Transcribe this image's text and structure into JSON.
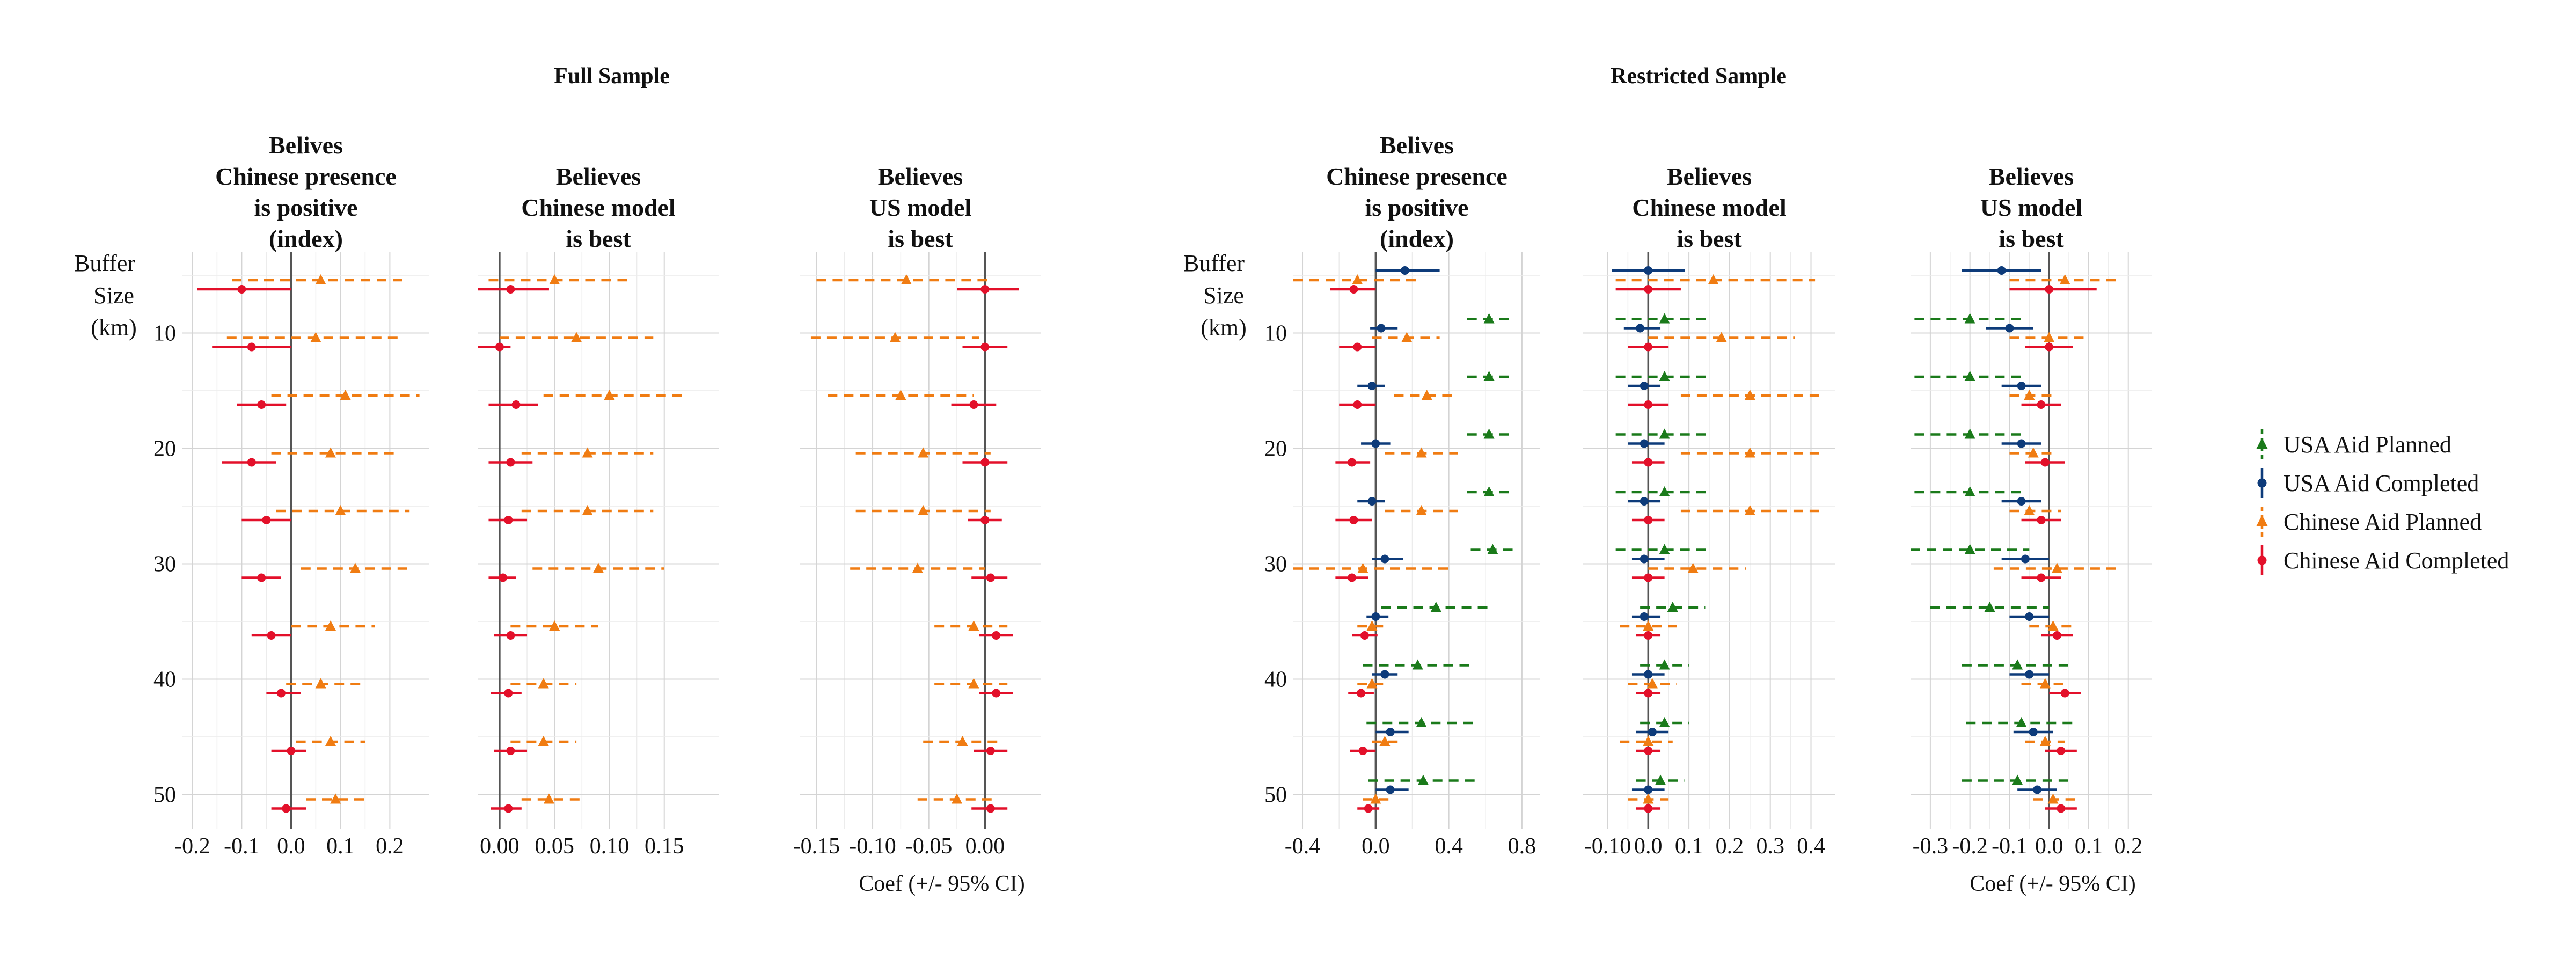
{
  "sections": [
    "Full Sample",
    "Restricted Sample"
  ],
  "buffer_label": [
    "Buffer",
    "Size",
    "(km)"
  ],
  "x_axis_label": "Coef (+/- 95% CI)",
  "legend": [
    {
      "label": "USA Aid Planned",
      "color": "#1a7a1a",
      "shape": "triangle",
      "dash": true
    },
    {
      "label": "USA Aid Completed",
      "color": "#0d3b7a",
      "shape": "circle",
      "dash": false
    },
    {
      "label": "Chinese Aid Planned",
      "color": "#f07c12",
      "shape": "triangle",
      "dash": true
    },
    {
      "label": "Chinese Aid Completed",
      "color": "#e3102a",
      "shape": "circle",
      "dash": false
    }
  ],
  "chart_data": [
    {
      "type": "scatter",
      "section": "Full Sample",
      "title": [
        "Belives",
        "Chinese presence",
        "is positive",
        "(index)"
      ],
      "xlim": [
        -0.22,
        0.28
      ],
      "xticks": [
        -0.2,
        -0.1,
        0.0,
        0.1,
        0.2
      ],
      "xtick_labels": [
        "-0.2",
        "-0.1",
        "0.0",
        "0.1",
        "0.2"
      ],
      "ylim": [
        3,
        53
      ],
      "yticks": [
        10,
        20,
        30,
        40,
        50
      ],
      "grid": true,
      "buffer": [
        5,
        10,
        15,
        20,
        25,
        30,
        35,
        40,
        45,
        50
      ],
      "series": [
        {
          "name": "Chinese Aid Planned",
          "est": [
            0.06,
            0.05,
            0.11,
            0.08,
            0.1,
            0.13,
            0.08,
            0.06,
            0.08,
            0.09
          ],
          "lo": [
            -0.12,
            -0.13,
            -0.04,
            -0.04,
            -0.03,
            0.02,
            0.0,
            -0.01,
            0.01,
            0.03
          ],
          "hi": [
            0.23,
            0.22,
            0.26,
            0.21,
            0.24,
            0.24,
            0.17,
            0.14,
            0.15,
            0.15
          ]
        },
        {
          "name": "Chinese Aid Completed",
          "est": [
            -0.1,
            -0.08,
            -0.06,
            -0.08,
            -0.05,
            -0.06,
            -0.04,
            -0.02,
            0.0,
            -0.01
          ],
          "lo": [
            -0.19,
            -0.16,
            -0.11,
            -0.14,
            -0.1,
            -0.1,
            -0.08,
            -0.05,
            -0.04,
            -0.04
          ],
          "hi": [
            0.0,
            0.0,
            -0.01,
            -0.03,
            0.0,
            -0.02,
            0.0,
            0.02,
            0.03,
            0.03
          ]
        }
      ]
    },
    {
      "type": "scatter",
      "section": "Full Sample",
      "title": [
        "Believes",
        "Chinese model",
        "is best"
      ],
      "xlim": [
        -0.02,
        0.2
      ],
      "xticks": [
        0.0,
        0.05,
        0.1,
        0.15
      ],
      "xtick_labels": [
        "0.00",
        "0.05",
        "0.10",
        "0.15"
      ],
      "ylim": [
        3,
        53
      ],
      "yticks": [
        10,
        20,
        30,
        40,
        50
      ],
      "grid": true,
      "buffer": [
        5,
        10,
        15,
        20,
        25,
        30,
        35,
        40,
        45,
        50
      ],
      "series": [
        {
          "name": "Chinese Aid Planned",
          "est": [
            0.05,
            0.07,
            0.1,
            0.08,
            0.08,
            0.09,
            0.05,
            0.04,
            0.04,
            0.045
          ],
          "lo": [
            -0.01,
            0.0,
            0.04,
            0.02,
            0.02,
            0.03,
            0.01,
            0.01,
            0.01,
            0.02
          ],
          "hi": [
            0.12,
            0.14,
            0.17,
            0.14,
            0.14,
            0.15,
            0.09,
            0.07,
            0.07,
            0.075
          ]
        },
        {
          "name": "Chinese Aid Completed",
          "est": [
            0.01,
            0.0,
            0.015,
            0.01,
            0.008,
            0.003,
            0.01,
            0.008,
            0.01,
            0.008
          ],
          "lo": [
            -0.02,
            -0.02,
            -0.01,
            -0.01,
            -0.01,
            -0.01,
            -0.005,
            -0.008,
            -0.005,
            -0.008
          ],
          "hi": [
            0.045,
            0.01,
            0.035,
            0.03,
            0.025,
            0.015,
            0.025,
            0.02,
            0.025,
            0.02
          ]
        }
      ]
    },
    {
      "type": "scatter",
      "section": "Full Sample",
      "title": [
        "Believes",
        "US model",
        "is best"
      ],
      "xlim": [
        -0.165,
        0.05
      ],
      "xticks": [
        -0.15,
        -0.1,
        -0.05,
        0.0
      ],
      "xtick_labels": [
        "-0.15",
        "-0.10",
        "-0.05",
        "0.00"
      ],
      "ylim": [
        3,
        53
      ],
      "yticks": [
        10,
        20,
        30,
        40,
        50
      ],
      "grid": true,
      "buffer": [
        5,
        10,
        15,
        20,
        25,
        30,
        35,
        40,
        45,
        50
      ],
      "series": [
        {
          "name": "Chinese Aid Planned",
          "est": [
            -0.07,
            -0.08,
            -0.075,
            -0.055,
            -0.055,
            -0.06,
            -0.01,
            -0.01,
            -0.02,
            -0.025
          ],
          "lo": [
            -0.15,
            -0.155,
            -0.14,
            -0.115,
            -0.115,
            -0.12,
            -0.045,
            -0.045,
            -0.055,
            -0.06
          ],
          "hi": [
            0.005,
            -0.005,
            -0.01,
            0.005,
            0.005,
            0.0,
            0.02,
            0.02,
            0.015,
            0.01
          ]
        },
        {
          "name": "Chinese Aid Completed",
          "est": [
            0.0,
            0.0,
            -0.01,
            0.0,
            0.0,
            0.005,
            0.01,
            0.01,
            0.005,
            0.005
          ],
          "lo": [
            -0.025,
            -0.02,
            -0.03,
            -0.02,
            -0.015,
            -0.012,
            -0.005,
            -0.005,
            -0.01,
            -0.012
          ],
          "hi": [
            0.03,
            0.02,
            0.01,
            0.02,
            0.015,
            0.02,
            0.025,
            0.025,
            0.02,
            0.02
          ]
        }
      ]
    },
    {
      "type": "scatter",
      "section": "Restricted Sample",
      "title": [
        "Belives",
        "Chinese presence",
        "is positive",
        "(index)"
      ],
      "xlim": [
        -0.45,
        0.9
      ],
      "xticks": [
        -0.4,
        0.0,
        0.4,
        0.8
      ],
      "xtick_labels": [
        "-0.4",
        "0.0",
        "0.4",
        "0.8"
      ],
      "ylim": [
        3,
        53
      ],
      "yticks": [
        10,
        20,
        30,
        40,
        50
      ],
      "grid": true,
      "buffer": [
        5,
        10,
        15,
        20,
        25,
        30,
        35,
        40,
        45,
        50
      ],
      "series": [
        {
          "name": "USA Aid Planned",
          "est": [
            null,
            0.62,
            0.62,
            0.62,
            0.62,
            0.64,
            0.33,
            0.23,
            0.25,
            0.26
          ],
          "lo": [
            null,
            0.5,
            0.5,
            0.5,
            0.5,
            0.52,
            0.03,
            -0.07,
            -0.05,
            -0.04
          ],
          "hi": [
            null,
            0.74,
            0.74,
            0.74,
            0.74,
            0.76,
            0.63,
            0.53,
            0.55,
            0.56
          ]
        },
        {
          "name": "USA Aid Completed",
          "est": [
            0.16,
            0.03,
            -0.02,
            0.0,
            -0.02,
            0.05,
            0.0,
            0.05,
            0.08,
            0.08
          ],
          "lo": [
            0.0,
            -0.03,
            -0.1,
            -0.08,
            -0.1,
            -0.02,
            -0.05,
            -0.02,
            0.0,
            0.0
          ],
          "hi": [
            0.35,
            0.12,
            0.05,
            0.08,
            0.05,
            0.15,
            0.07,
            0.12,
            0.18,
            0.18
          ]
        },
        {
          "name": "Chinese Aid Planned",
          "est": [
            -0.1,
            0.17,
            0.28,
            0.25,
            0.25,
            -0.07,
            -0.02,
            -0.02,
            0.05,
            0.0
          ],
          "lo": [
            -0.45,
            -0.02,
            0.1,
            0.05,
            0.05,
            -0.45,
            -0.1,
            -0.1,
            -0.02,
            -0.07
          ],
          "hi": [
            0.22,
            0.35,
            0.45,
            0.45,
            0.45,
            0.42,
            0.07,
            0.07,
            0.12,
            0.07
          ]
        },
        {
          "name": "Chinese Aid Completed",
          "est": [
            -0.12,
            -0.1,
            -0.1,
            -0.13,
            -0.12,
            -0.13,
            -0.06,
            -0.08,
            -0.07,
            -0.04
          ],
          "lo": [
            -0.25,
            -0.2,
            -0.2,
            -0.22,
            -0.22,
            -0.22,
            -0.13,
            -0.15,
            -0.14,
            -0.1
          ],
          "hi": [
            0.0,
            0.0,
            0.0,
            -0.03,
            -0.02,
            -0.04,
            0.01,
            -0.01,
            0.0,
            0.02
          ]
        }
      ]
    },
    {
      "type": "scatter",
      "section": "Restricted Sample",
      "title": [
        "Believes",
        "Chinese model",
        "is best"
      ],
      "xlim": [
        -0.16,
        0.46
      ],
      "xticks": [
        -0.1,
        0.0,
        0.1,
        0.2,
        0.3,
        0.4
      ],
      "xtick_labels": [
        "-0.10",
        "0.0",
        "0.1",
        "0.2",
        "0.3",
        "0.4"
      ],
      "ylim": [
        3,
        53
      ],
      "yticks": [
        10,
        20,
        30,
        40,
        50
      ],
      "grid": true,
      "buffer": [
        5,
        10,
        15,
        20,
        25,
        30,
        35,
        40,
        45,
        50
      ],
      "series": [
        {
          "name": "USA Aid Planned",
          "est": [
            null,
            0.04,
            0.04,
            0.04,
            0.04,
            0.04,
            0.06,
            0.04,
            0.04,
            0.03
          ],
          "lo": [
            null,
            -0.08,
            -0.08,
            -0.08,
            -0.08,
            -0.08,
            -0.02,
            -0.02,
            -0.02,
            -0.03
          ],
          "hi": [
            null,
            0.15,
            0.15,
            0.15,
            0.15,
            0.15,
            0.14,
            0.1,
            0.1,
            0.09
          ]
        },
        {
          "name": "USA Aid Completed",
          "est": [
            0.0,
            -0.02,
            -0.01,
            -0.01,
            -0.01,
            -0.01,
            -0.01,
            0.0,
            0.01,
            0.0
          ],
          "lo": [
            -0.09,
            -0.06,
            -0.05,
            -0.05,
            -0.05,
            -0.04,
            -0.04,
            -0.04,
            -0.03,
            -0.04
          ],
          "hi": [
            0.09,
            0.03,
            0.03,
            0.04,
            0.03,
            0.04,
            0.03,
            0.04,
            0.05,
            0.04
          ]
        },
        {
          "name": "Chinese Aid Planned",
          "est": [
            0.16,
            0.18,
            0.25,
            0.25,
            0.25,
            0.11,
            0.0,
            0.01,
            0.0,
            0.0
          ],
          "lo": [
            -0.08,
            0.0,
            0.08,
            0.08,
            0.08,
            0.0,
            -0.07,
            -0.05,
            -0.07,
            -0.05
          ],
          "hi": [
            0.41,
            0.36,
            0.42,
            0.42,
            0.42,
            0.24,
            0.07,
            0.07,
            0.06,
            0.05
          ]
        },
        {
          "name": "Chinese Aid Completed",
          "est": [
            0.0,
            0.0,
            0.0,
            0.0,
            0.0,
            0.0,
            0.0,
            0.0,
            0.0,
            0.0
          ],
          "lo": [
            -0.08,
            -0.05,
            -0.05,
            -0.04,
            -0.04,
            -0.04,
            -0.03,
            -0.03,
            -0.03,
            -0.03
          ],
          "hi": [
            0.08,
            0.05,
            0.05,
            0.04,
            0.04,
            0.04,
            0.03,
            0.03,
            0.03,
            0.03
          ]
        }
      ]
    },
    {
      "type": "scatter",
      "section": "Restricted Sample",
      "title": [
        "Believes",
        "US model",
        "is best"
      ],
      "xlim": [
        -0.35,
        0.26
      ],
      "xticks": [
        -0.3,
        -0.2,
        -0.1,
        0.0,
        0.1,
        0.2
      ],
      "xtick_labels": [
        "-0.3",
        "-0.2",
        "-0.1",
        "0.0",
        "0.1",
        "0.2"
      ],
      "ylim": [
        3,
        53
      ],
      "yticks": [
        10,
        20,
        30,
        40,
        50
      ],
      "grid": true,
      "buffer": [
        5,
        10,
        15,
        20,
        25,
        30,
        35,
        40,
        45,
        50
      ],
      "series": [
        {
          "name": "USA Aid Planned",
          "est": [
            null,
            -0.2,
            -0.2,
            -0.2,
            -0.2,
            -0.2,
            -0.15,
            -0.08,
            -0.07,
            -0.08
          ],
          "lo": [
            null,
            -0.34,
            -0.34,
            -0.34,
            -0.34,
            -0.35,
            -0.3,
            -0.22,
            -0.21,
            -0.22
          ],
          "hi": [
            null,
            -0.06,
            -0.06,
            -0.06,
            -0.06,
            -0.05,
            0.0,
            0.06,
            0.07,
            0.06
          ]
        },
        {
          "name": "USA Aid Completed",
          "est": [
            -0.12,
            -0.1,
            -0.07,
            -0.07,
            -0.07,
            -0.06,
            -0.05,
            -0.05,
            -0.04,
            -0.03
          ],
          "lo": [
            -0.22,
            -0.16,
            -0.12,
            -0.12,
            -0.12,
            -0.12,
            -0.1,
            -0.1,
            -0.09,
            -0.08
          ],
          "hi": [
            -0.02,
            -0.04,
            -0.02,
            -0.02,
            -0.02,
            0.0,
            0.0,
            0.0,
            0.01,
            0.02
          ]
        },
        {
          "name": "Chinese Aid Planned",
          "est": [
            0.04,
            0.0,
            -0.05,
            -0.04,
            -0.05,
            0.02,
            0.01,
            -0.01,
            -0.01,
            0.01
          ],
          "lo": [
            -0.1,
            -0.1,
            -0.1,
            -0.1,
            -0.1,
            -0.14,
            -0.05,
            -0.07,
            -0.06,
            -0.04
          ],
          "hi": [
            0.18,
            0.1,
            0.02,
            0.02,
            0.03,
            0.17,
            0.07,
            0.05,
            0.04,
            0.07
          ]
        },
        {
          "name": "Chinese Aid Completed",
          "est": [
            0.0,
            0.0,
            -0.02,
            -0.01,
            -0.02,
            -0.02,
            0.02,
            0.04,
            0.03,
            0.03
          ],
          "lo": [
            -0.1,
            -0.06,
            -0.07,
            -0.06,
            -0.07,
            -0.07,
            -0.02,
            0.0,
            -0.01,
            -0.01
          ],
          "hi": [
            0.12,
            0.06,
            0.03,
            0.04,
            0.03,
            0.03,
            0.06,
            0.08,
            0.07,
            0.07
          ]
        }
      ]
    }
  ]
}
